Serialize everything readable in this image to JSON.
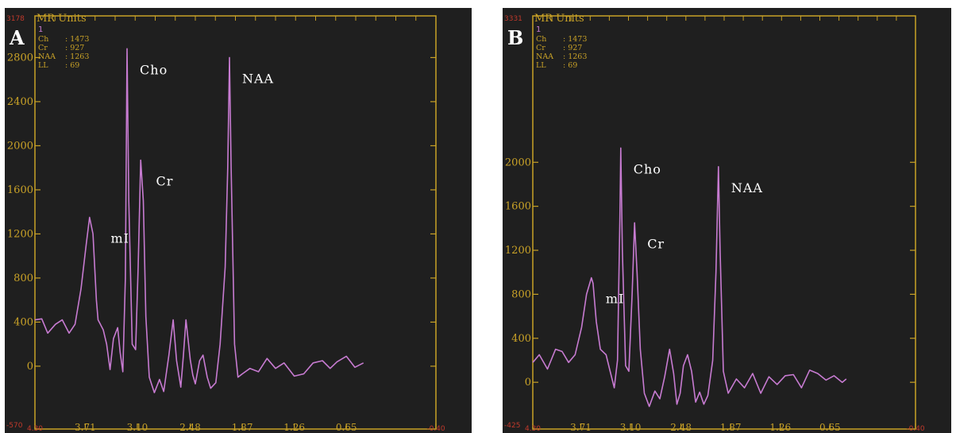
{
  "chart_data": [
    {
      "type": "line",
      "panel_label": "A",
      "unit_label": "MR Units",
      "series_index": "1",
      "top_value_label": "3178",
      "bottom_value_label": "-570",
      "ylim": [
        -570,
        3178
      ],
      "y_ticks": [
        "0",
        "400",
        "800",
        "1200",
        "1600",
        "2000",
        "2400",
        "2800"
      ],
      "x_ticks": [
        "4.30",
        "3.71",
        "3.10",
        "2.48",
        "1.87",
        "1.26",
        "0.65",
        "-0.40"
      ],
      "xlim": [
        4.3,
        -0.4
      ],
      "legend": [
        {
          "name": "Ch",
          "value": ": 1473"
        },
        {
          "name": "Cr",
          "value": ": 927"
        },
        {
          "name": "NAA",
          "value": ": 1263"
        },
        {
          "name": "LL",
          "value": ": 69"
        }
      ],
      "peaks": [
        {
          "label": "mI",
          "ppm": 3.56,
          "value": 1350
        },
        {
          "label": "Cho",
          "ppm": 3.22,
          "value": 2880
        },
        {
          "label": "Cr",
          "ppm": 3.03,
          "value": 1870
        },
        {
          "label": "NAA",
          "ppm": 2.02,
          "value": 2800
        }
      ],
      "x": [
        4.3,
        4.22,
        4.15,
        4.06,
        3.98,
        3.9,
        3.83,
        3.76,
        3.7,
        3.66,
        3.62,
        3.58,
        3.56,
        3.54,
        3.5,
        3.46,
        3.42,
        3.38,
        3.33,
        3.3,
        3.27,
        3.24,
        3.22,
        3.2,
        3.16,
        3.12,
        3.09,
        3.06,
        3.03,
        3.0,
        2.96,
        2.9,
        2.84,
        2.79,
        2.73,
        2.68,
        2.64,
        2.59,
        2.56,
        2.53,
        2.48,
        2.45,
        2.42,
        2.37,
        2.33,
        2.28,
        2.24,
        2.18,
        2.13,
        2.07,
        2.04,
        2.02,
        2.0,
        1.96,
        1.92,
        1.87,
        1.78,
        1.68,
        1.58,
        1.48,
        1.38,
        1.26,
        1.15,
        1.04,
        0.93,
        0.84,
        0.76,
        0.65,
        0.55,
        0.45
      ],
      "values": [
        420,
        430,
        300,
        380,
        420,
        300,
        380,
        700,
        1100,
        1350,
        1200,
        600,
        420,
        390,
        330,
        200,
        -30,
        250,
        350,
        120,
        -50,
        800,
        2880,
        1500,
        200,
        150,
        900,
        1870,
        1500,
        450,
        -100,
        -240,
        -120,
        -230,
        100,
        420,
        50,
        -190,
        100,
        420,
        60,
        -80,
        -160,
        50,
        100,
        -100,
        -200,
        -150,
        200,
        900,
        1800,
        2800,
        1800,
        200,
        -100,
        -70,
        -20,
        -50,
        70,
        -20,
        30,
        -90,
        -70,
        30,
        50,
        -20,
        40,
        90,
        -10,
        30
      ]
    },
    {
      "type": "line",
      "panel_label": "B",
      "unit_label": "MR Units",
      "series_index": "1",
      "top_value_label": "3331",
      "bottom_value_label": "-425",
      "ylim": [
        -425,
        3331
      ],
      "y_ticks": [
        "0",
        "400",
        "800",
        "1200",
        "1600",
        "2000"
      ],
      "x_ticks": [
        "4.30",
        "3.71",
        "3.10",
        "2.48",
        "1.87",
        "1.26",
        "0.65",
        "-0.40"
      ],
      "xlim": [
        4.3,
        -0.4
      ],
      "legend": [
        {
          "name": "Ch",
          "value": ": 1473"
        },
        {
          "name": "Cr",
          "value": ": 927"
        },
        {
          "name": "NAA",
          "value": ": 1263"
        },
        {
          "name": "LL",
          "value": ": 69"
        }
      ],
      "peaks": [
        {
          "label": "mI",
          "ppm": 3.56,
          "value": 950
        },
        {
          "label": "Cho",
          "ppm": 3.22,
          "value": 2130
        },
        {
          "label": "Cr",
          "ppm": 3.05,
          "value": 1450
        },
        {
          "label": "NAA",
          "ppm": 2.02,
          "value": 1960
        }
      ],
      "x": [
        4.3,
        4.22,
        4.12,
        4.02,
        3.94,
        3.86,
        3.78,
        3.7,
        3.64,
        3.58,
        3.56,
        3.52,
        3.47,
        3.4,
        3.35,
        3.3,
        3.26,
        3.23,
        3.22,
        3.2,
        3.16,
        3.12,
        3.08,
        3.05,
        3.02,
        2.98,
        2.93,
        2.87,
        2.8,
        2.74,
        2.68,
        2.62,
        2.57,
        2.53,
        2.49,
        2.45,
        2.4,
        2.35,
        2.3,
        2.25,
        2.2,
        2.15,
        2.09,
        2.05,
        2.02,
        2.0,
        1.96,
        1.9,
        1.8,
        1.7,
        1.6,
        1.5,
        1.4,
        1.3,
        1.2,
        1.1,
        1.0,
        0.9,
        0.8,
        0.7,
        0.6,
        0.5,
        0.45
      ],
      "values": [
        180,
        250,
        120,
        300,
        280,
        180,
        250,
        500,
        800,
        950,
        900,
        550,
        300,
        250,
        100,
        -50,
        200,
        1500,
        2130,
        1200,
        150,
        100,
        800,
        1450,
        1000,
        300,
        -100,
        -220,
        -80,
        -150,
        50,
        300,
        80,
        -200,
        -100,
        150,
        250,
        100,
        -180,
        -90,
        -200,
        -120,
        200,
        1000,
        1960,
        1200,
        100,
        -100,
        30,
        -50,
        80,
        -100,
        50,
        -20,
        60,
        70,
        -50,
        110,
        80,
        20,
        60,
        0,
        30
      ]
    }
  ],
  "colors": {
    "background": "#1f1f1f",
    "frame": "#c9a227",
    "trace": "#c77bd1",
    "label": "#ffffff",
    "range": "#c0392b"
  }
}
